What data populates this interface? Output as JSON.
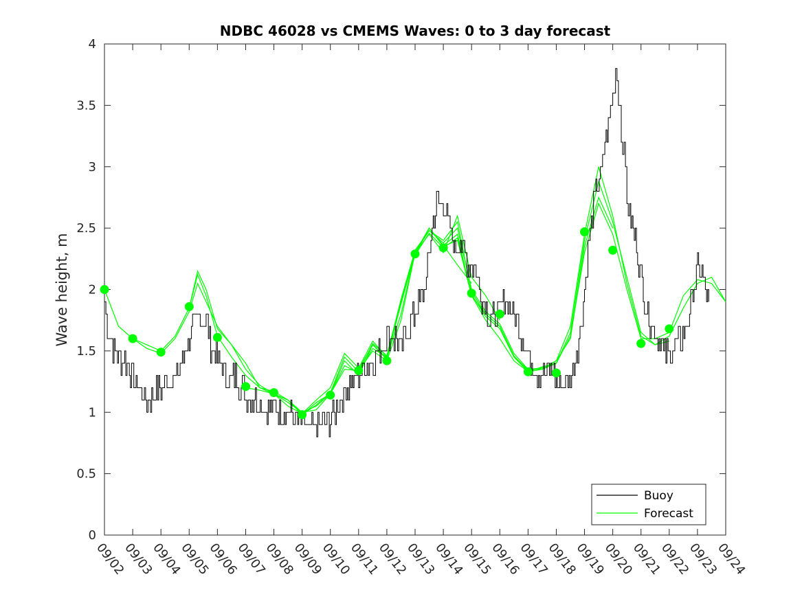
{
  "chart_data": {
    "type": "line",
    "title": "NDBC 46028 vs CMEMS Waves: 0 to 3 day forecast",
    "xlabel": "",
    "ylabel": "Wave height, m",
    "xlim": [
      0,
      22
    ],
    "ylim": [
      0,
      4
    ],
    "yticks": [
      0,
      0.5,
      1,
      1.5,
      2,
      2.5,
      3,
      3.5,
      4
    ],
    "ytick_labels": [
      "0",
      "0.5",
      "1",
      "1.5",
      "2",
      "2.5",
      "3",
      "3.5",
      "4"
    ],
    "xtick_labels": [
      "09/02",
      "09/03",
      "09/04",
      "09/05",
      "09/06",
      "09/07",
      "09/08",
      "09/09",
      "09/10",
      "09/11",
      "09/12",
      "09/13",
      "09/14",
      "09/15",
      "09/16",
      "09/17",
      "09/18",
      "09/19",
      "09/20",
      "09/21",
      "09/22",
      "09/23",
      "09/24"
    ],
    "x_units": "days since 09/02",
    "legend": {
      "position": "bottom-right",
      "entries": [
        "Buoy",
        "Forecast"
      ]
    },
    "colors": {
      "buoy": "#000000",
      "forecast": "#00ff00",
      "axis": "#262626"
    },
    "series": [
      {
        "name": "Buoy",
        "x": [
          0,
          0.1,
          0.2,
          0.3,
          0.5,
          0.8,
          1.0,
          1.2,
          1.5,
          1.8,
          2.0,
          2.3,
          2.6,
          2.8,
          3.0,
          3.2,
          3.35,
          3.6,
          3.8,
          4.0,
          4.3,
          4.6,
          5.0,
          5.3,
          5.6,
          6.0,
          6.4,
          6.8,
          7.0,
          7.3,
          7.6,
          7.8,
          8.0,
          8.3,
          8.6,
          9.0,
          9.3,
          9.6,
          10.0,
          10.3,
          10.5,
          10.8,
          11.0,
          11.2,
          11.4,
          11.6,
          11.8,
          12.0,
          12.2,
          12.4,
          12.6,
          12.8,
          13.0,
          13.2,
          13.4,
          13.6,
          13.8,
          14.0,
          14.2,
          14.5,
          14.8,
          15.0,
          15.2,
          15.5,
          15.8,
          16.0,
          16.2,
          16.5,
          16.8,
          17.0,
          17.2,
          17.4,
          17.6,
          17.8,
          18.0,
          18.1,
          18.2,
          18.3,
          18.4,
          18.5,
          18.6,
          18.8,
          19.0,
          19.2,
          19.4,
          19.6,
          19.8,
          20.0,
          20.2,
          20.4,
          20.6,
          20.8,
          21.0,
          21.2,
          21.4
        ],
        "values": [
          1.95,
          1.7,
          1.6,
          1.5,
          1.45,
          1.4,
          1.3,
          1.2,
          1.1,
          1.15,
          1.2,
          1.25,
          1.3,
          1.45,
          1.6,
          1.75,
          1.8,
          1.75,
          1.5,
          1.45,
          1.3,
          1.3,
          1.15,
          1.1,
          1.05,
          1.05,
          1.0,
          0.95,
          0.9,
          0.85,
          0.88,
          0.92,
          0.95,
          1.05,
          1.2,
          1.3,
          1.38,
          1.45,
          1.6,
          1.6,
          1.5,
          1.7,
          1.8,
          1.9,
          2.1,
          2.5,
          2.75,
          2.7,
          2.55,
          2.3,
          2.4,
          2.25,
          2.2,
          2.1,
          1.9,
          1.8,
          1.75,
          1.8,
          1.9,
          1.8,
          1.6,
          1.45,
          1.35,
          1.3,
          1.35,
          1.25,
          1.25,
          1.3,
          1.6,
          2.0,
          2.5,
          2.8,
          3.0,
          3.3,
          3.55,
          3.8,
          3.6,
          3.3,
          3.1,
          2.8,
          2.6,
          2.4,
          2.1,
          1.8,
          1.7,
          1.6,
          1.5,
          1.45,
          1.55,
          1.6,
          1.7,
          1.9,
          2.2,
          2.1,
          1.9
        ]
      },
      {
        "name": "Forecast",
        "runs": [
          {
            "x": [
              0,
              0.5,
              1,
              1.5,
              2,
              2.5,
              3,
              3.3,
              3.6,
              4,
              4.5,
              5,
              5.5,
              6,
              6.5,
              7,
              7.5,
              8,
              8.5,
              9,
              9.5,
              10,
              10.5,
              11,
              11.5,
              12,
              12.5,
              13
            ],
            "values": [
              2.0,
              1.7,
              1.6,
              1.55,
              1.5,
              1.62,
              1.85,
              2.12,
              1.95,
              1.62,
              1.45,
              1.3,
              1.2,
              1.15,
              1.1,
              1.0,
              1.02,
              1.15,
              1.35,
              1.34,
              1.5,
              1.42,
              1.75,
              2.3,
              2.5,
              2.36,
              2.2,
              2.05
            ]
          },
          {
            "x": [
              1,
              1.5,
              2,
              2.5,
              3,
              3.3,
              3.6,
              4,
              4.5,
              5,
              5.5,
              6,
              6.5,
              7,
              7.5,
              8,
              8.5,
              9,
              9.5,
              10,
              10.5,
              11,
              11.5,
              12,
              12.5,
              13,
              13.5,
              14
            ],
            "values": [
              1.6,
              1.52,
              1.48,
              1.6,
              1.82,
              2.05,
              1.9,
              1.7,
              1.55,
              1.35,
              1.22,
              1.15,
              1.08,
              1.0,
              1.05,
              1.15,
              1.38,
              1.32,
              1.52,
              1.45,
              1.8,
              2.3,
              2.45,
              2.3,
              2.6,
              2.1,
              1.95,
              1.75
            ]
          },
          {
            "x": [
              3,
              3.3,
              3.6,
              4,
              4.5,
              5,
              5.5,
              6,
              6.5,
              7,
              7.5,
              8,
              8.5,
              9,
              9.5,
              10,
              10.5,
              11,
              11.5,
              12,
              12.5,
              13,
              13.5,
              14,
              14.5,
              15,
              15.5,
              16
            ],
            "values": [
              1.85,
              2.15,
              2.0,
              1.68,
              1.55,
              1.4,
              1.2,
              1.17,
              1.1,
              0.98,
              1.08,
              1.15,
              1.42,
              1.3,
              1.55,
              1.43,
              1.9,
              2.28,
              2.5,
              2.35,
              2.4,
              1.95,
              1.75,
              1.6,
              1.42,
              1.33,
              1.35,
              1.4
            ]
          },
          {
            "x": [
              5,
              5.5,
              6,
              6.5,
              7,
              7.5,
              8,
              8.5,
              9,
              9.5,
              10,
              10.5,
              11,
              11.5,
              12,
              12.5,
              13,
              13.5,
              14,
              14.5,
              15,
              15.5,
              16,
              16.5,
              17,
              17.5,
              18
            ],
            "values": [
              1.2,
              1.18,
              1.15,
              1.05,
              0.99,
              1.1,
              1.2,
              1.48,
              1.36,
              1.58,
              1.45,
              1.88,
              2.3,
              2.48,
              2.4,
              2.55,
              1.98,
              1.8,
              1.7,
              1.45,
              1.35,
              1.35,
              1.42,
              1.6,
              2.35,
              2.75,
              2.5
            ]
          },
          {
            "x": [
              7,
              7.5,
              8,
              8.5,
              9,
              9.5,
              10,
              10.5,
              11,
              11.5,
              12,
              12.5,
              13,
              13.5,
              14,
              14.5,
              15,
              15.5,
              16,
              16.5,
              17,
              17.5,
              18,
              18.5,
              19,
              19.5,
              20
            ],
            "values": [
              0.98,
              1.06,
              1.16,
              1.45,
              1.33,
              1.56,
              1.46,
              1.92,
              2.32,
              2.48,
              2.38,
              2.5,
              2.0,
              1.82,
              1.72,
              1.48,
              1.35,
              1.36,
              1.4,
              1.65,
              2.4,
              2.88,
              2.55,
              2.1,
              1.65,
              1.55,
              1.58
            ]
          },
          {
            "x": [
              9,
              9.5,
              10,
              10.5,
              11,
              11.5,
              12,
              12.5,
              13,
              13.5,
              14,
              14.5,
              15,
              15.5,
              16,
              16.5,
              17,
              17.5,
              18,
              18.5,
              19,
              19.5,
              20,
              20.5,
              21,
              21.5,
              22
            ],
            "values": [
              1.35,
              1.55,
              1.44,
              1.9,
              2.3,
              2.5,
              2.36,
              2.45,
              1.95,
              1.8,
              1.7,
              1.46,
              1.34,
              1.36,
              1.42,
              1.7,
              2.45,
              3.0,
              2.6,
              2.05,
              1.62,
              1.55,
              1.62,
              1.85,
              2.05,
              2.1,
              1.9
            ]
          },
          {
            "x": [
              11,
              11.5,
              12,
              12.5,
              13,
              13.5,
              14,
              14.5,
              15,
              15.5,
              16,
              16.5,
              17,
              17.5,
              18,
              18.5,
              19,
              19.5,
              20,
              20.5,
              21,
              21.5,
              22
            ],
            "values": [
              2.28,
              2.46,
              2.34,
              2.42,
              1.96,
              1.78,
              1.68,
              1.45,
              1.33,
              1.37,
              1.4,
              1.62,
              2.3,
              2.7,
              2.45,
              2.0,
              1.6,
              1.6,
              1.65,
              1.95,
              2.08,
              2.05,
              1.9
            ]
          }
        ]
      },
      {
        "name": "Forecast markers",
        "x": [
          0,
          1,
          2,
          3,
          4,
          5,
          6,
          7,
          8,
          9,
          10,
          11,
          12,
          13,
          14,
          15,
          16,
          17,
          18,
          19,
          20
        ],
        "values": [
          2.0,
          1.6,
          1.49,
          1.86,
          1.61,
          1.21,
          1.16,
          0.98,
          1.14,
          1.34,
          1.42,
          2.29,
          2.34,
          1.97,
          1.8,
          1.33,
          1.32,
          2.47,
          2.32,
          1.56,
          1.68
        ]
      }
    ]
  }
}
